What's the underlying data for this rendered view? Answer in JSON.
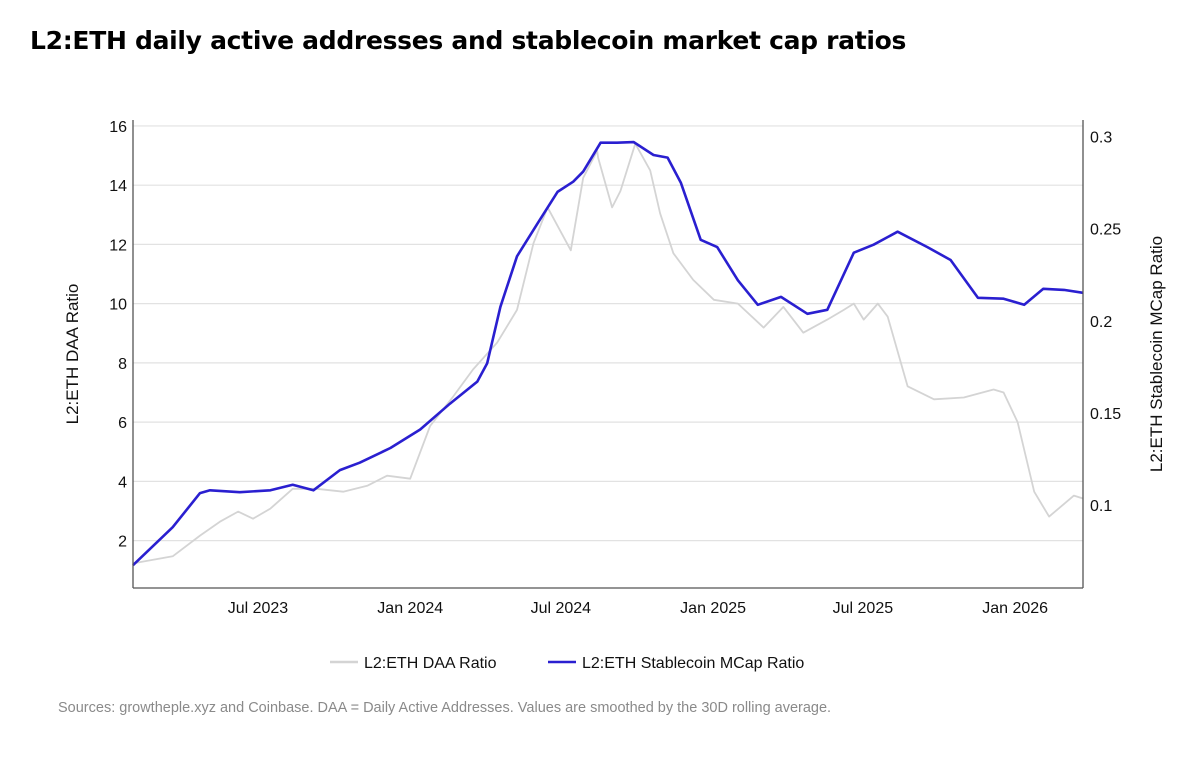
{
  "title": "L2:ETH daily active addresses and stablecoin market cap ratios",
  "source": "Sources: growtheple.xyz and Coinbase. DAA = Daily Active Addresses. Values are smoothed by the 30D rolling average.",
  "chart_data": {
    "type": "line",
    "title": "L2:ETH daily active addresses and stablecoin market cap ratios",
    "xlabel": "",
    "ylabel": "L2:ETH DAA Ratio",
    "y2label": "L2:ETH Stablecoin MCap Ratio",
    "xlim": [
      "2023-01-31",
      "2026-03-24"
    ],
    "ylim": [
      0.4,
      16.2
    ],
    "y2lim": [
      0.055,
      0.309
    ],
    "x_ticks": [
      {
        "date": "2023-07-01",
        "label": "Jul 2023"
      },
      {
        "date": "2024-01-01",
        "label": "Jan 2024"
      },
      {
        "date": "2024-07-01",
        "label": "Jul 2024"
      },
      {
        "date": "2025-01-01",
        "label": "Jan 2025"
      },
      {
        "date": "2025-07-01",
        "label": "Jul 2025"
      },
      {
        "date": "2026-01-01",
        "label": "Jan 2026"
      }
    ],
    "y_ticks": [
      2,
      4,
      6,
      8,
      10,
      12,
      14,
      16
    ],
    "y2_ticks": [
      0.1,
      0.15,
      0.2,
      0.25,
      0.3
    ],
    "grid": true,
    "legend_position": "bottom",
    "series": [
      {
        "name": "L2:ETH DAA Ratio",
        "axis": "left",
        "color": "#d4d4d4",
        "points": [
          [
            "2023-01-31",
            1.23
          ],
          [
            "2023-03-20",
            1.47
          ],
          [
            "2023-04-22",
            2.17
          ],
          [
            "2023-05-16",
            2.64
          ],
          [
            "2023-06-07",
            2.98
          ],
          [
            "2023-06-25",
            2.74
          ],
          [
            "2023-07-16",
            3.08
          ],
          [
            "2023-08-12",
            3.75
          ],
          [
            "2023-09-10",
            3.75
          ],
          [
            "2023-10-12",
            3.65
          ],
          [
            "2023-11-10",
            3.85
          ],
          [
            "2023-12-04",
            4.19
          ],
          [
            "2024-01-01",
            4.09
          ],
          [
            "2024-01-25",
            5.87
          ],
          [
            "2024-02-22",
            6.87
          ],
          [
            "2024-03-17",
            7.78
          ],
          [
            "2024-04-15",
            8.68
          ],
          [
            "2024-05-09",
            9.79
          ],
          [
            "2024-05-29",
            12.04
          ],
          [
            "2024-06-15",
            13.25
          ],
          [
            "2024-07-13",
            11.8
          ],
          [
            "2024-07-28",
            14.25
          ],
          [
            "2024-08-14",
            15.16
          ],
          [
            "2024-08-15",
            14.93
          ],
          [
            "2024-09-01",
            13.25
          ],
          [
            "2024-09-11",
            13.8
          ],
          [
            "2024-09-29",
            15.4
          ],
          [
            "2024-10-17",
            14.5
          ],
          [
            "2024-10-29",
            13.05
          ],
          [
            "2024-11-14",
            11.7
          ],
          [
            "2024-12-08",
            10.8
          ],
          [
            "2025-01-02",
            10.13
          ],
          [
            "2025-01-31",
            10.0
          ],
          [
            "2025-03-03",
            9.19
          ],
          [
            "2025-03-27",
            9.89
          ],
          [
            "2025-04-20",
            9.02
          ],
          [
            "2025-05-19",
            9.46
          ],
          [
            "2025-06-08",
            9.79
          ],
          [
            "2025-06-20",
            10.0
          ],
          [
            "2025-07-02",
            9.46
          ],
          [
            "2025-07-19",
            10.0
          ],
          [
            "2025-07-31",
            9.56
          ],
          [
            "2025-08-24",
            7.21
          ],
          [
            "2025-09-25",
            6.77
          ],
          [
            "2025-10-31",
            6.83
          ],
          [
            "2025-12-06",
            7.1
          ],
          [
            "2025-12-18",
            7.0
          ],
          [
            "2026-01-04",
            6.0
          ],
          [
            "2026-01-24",
            3.65
          ],
          [
            "2026-02-11",
            2.81
          ],
          [
            "2026-03-13",
            3.52
          ],
          [
            "2026-03-24",
            3.42
          ]
        ]
      },
      {
        "name": "L2:ETH Stablecoin MCap Ratio",
        "axis": "right",
        "color": "#2a1fd0",
        "points": [
          [
            "2023-01-31",
            0.0674
          ],
          [
            "2023-03-20",
            0.088
          ],
          [
            "2023-04-22",
            0.1065
          ],
          [
            "2023-05-04",
            0.108
          ],
          [
            "2023-06-09",
            0.107
          ],
          [
            "2023-07-16",
            0.108
          ],
          [
            "2023-08-12",
            0.111
          ],
          [
            "2023-09-06",
            0.108
          ],
          [
            "2023-10-08",
            0.119
          ],
          [
            "2023-11-01",
            0.123
          ],
          [
            "2023-12-08",
            0.131
          ],
          [
            "2024-01-13",
            0.141
          ],
          [
            "2024-02-18",
            0.155
          ],
          [
            "2024-03-22",
            0.167
          ],
          [
            "2024-04-03",
            0.177
          ],
          [
            "2024-04-19",
            0.2076
          ],
          [
            "2024-05-09",
            0.235
          ],
          [
            "2024-06-03",
            0.253
          ],
          [
            "2024-06-27",
            0.27
          ],
          [
            "2024-07-16",
            0.2755
          ],
          [
            "2024-07-28",
            0.281
          ],
          [
            "2024-08-18",
            0.2967
          ],
          [
            "2024-09-07",
            0.2967
          ],
          [
            "2024-09-27",
            0.297
          ],
          [
            "2024-10-21",
            0.29
          ],
          [
            "2024-11-07",
            0.2886
          ],
          [
            "2024-11-23",
            0.275
          ],
          [
            "2024-12-17",
            0.244
          ],
          [
            "2025-01-06",
            0.24
          ],
          [
            "2025-01-31",
            0.222
          ],
          [
            "2025-02-24",
            0.2087
          ],
          [
            "2025-03-24",
            0.213
          ],
          [
            "2025-04-25",
            0.2038
          ],
          [
            "2025-05-19",
            0.206
          ],
          [
            "2025-06-20",
            0.237
          ],
          [
            "2025-07-14",
            0.2413
          ],
          [
            "2025-08-12",
            0.2484
          ],
          [
            "2025-09-17",
            0.24
          ],
          [
            "2025-10-15",
            0.233
          ],
          [
            "2025-11-17",
            0.2125
          ],
          [
            "2025-12-18",
            0.212
          ],
          [
            "2026-01-12",
            0.2087
          ],
          [
            "2026-02-04",
            0.2174
          ],
          [
            "2026-03-01",
            0.2168
          ],
          [
            "2026-03-24",
            0.2152
          ]
        ]
      }
    ]
  }
}
